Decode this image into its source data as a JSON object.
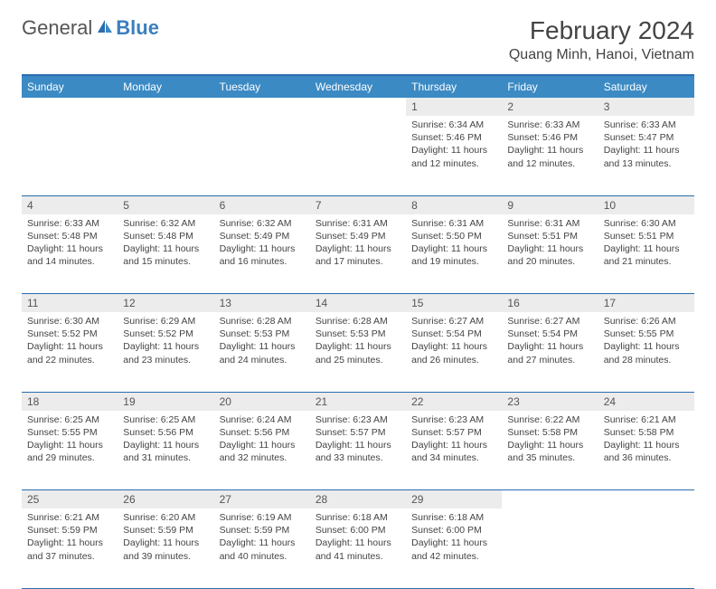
{
  "logo": {
    "general": "General",
    "blue": "Blue"
  },
  "title": "February 2024",
  "location": "Quang Minh, Hanoi, Vietnam",
  "colors": {
    "header_bg": "#3b8ac4",
    "header_text": "#ffffff",
    "rule": "#2a6db0",
    "daynum_bg": "#ececec",
    "logo_blue": "#3b7fbf"
  },
  "weekdays": [
    "Sunday",
    "Monday",
    "Tuesday",
    "Wednesday",
    "Thursday",
    "Friday",
    "Saturday"
  ],
  "weeks": [
    [
      null,
      null,
      null,
      null,
      {
        "n": "1",
        "sr": "6:34 AM",
        "ss": "5:46 PM",
        "dl": "11 hours and 12 minutes."
      },
      {
        "n": "2",
        "sr": "6:33 AM",
        "ss": "5:46 PM",
        "dl": "11 hours and 12 minutes."
      },
      {
        "n": "3",
        "sr": "6:33 AM",
        "ss": "5:47 PM",
        "dl": "11 hours and 13 minutes."
      }
    ],
    [
      {
        "n": "4",
        "sr": "6:33 AM",
        "ss": "5:48 PM",
        "dl": "11 hours and 14 minutes."
      },
      {
        "n": "5",
        "sr": "6:32 AM",
        "ss": "5:48 PM",
        "dl": "11 hours and 15 minutes."
      },
      {
        "n": "6",
        "sr": "6:32 AM",
        "ss": "5:49 PM",
        "dl": "11 hours and 16 minutes."
      },
      {
        "n": "7",
        "sr": "6:31 AM",
        "ss": "5:49 PM",
        "dl": "11 hours and 17 minutes."
      },
      {
        "n": "8",
        "sr": "6:31 AM",
        "ss": "5:50 PM",
        "dl": "11 hours and 19 minutes."
      },
      {
        "n": "9",
        "sr": "6:31 AM",
        "ss": "5:51 PM",
        "dl": "11 hours and 20 minutes."
      },
      {
        "n": "10",
        "sr": "6:30 AM",
        "ss": "5:51 PM",
        "dl": "11 hours and 21 minutes."
      }
    ],
    [
      {
        "n": "11",
        "sr": "6:30 AM",
        "ss": "5:52 PM",
        "dl": "11 hours and 22 minutes."
      },
      {
        "n": "12",
        "sr": "6:29 AM",
        "ss": "5:52 PM",
        "dl": "11 hours and 23 minutes."
      },
      {
        "n": "13",
        "sr": "6:28 AM",
        "ss": "5:53 PM",
        "dl": "11 hours and 24 minutes."
      },
      {
        "n": "14",
        "sr": "6:28 AM",
        "ss": "5:53 PM",
        "dl": "11 hours and 25 minutes."
      },
      {
        "n": "15",
        "sr": "6:27 AM",
        "ss": "5:54 PM",
        "dl": "11 hours and 26 minutes."
      },
      {
        "n": "16",
        "sr": "6:27 AM",
        "ss": "5:54 PM",
        "dl": "11 hours and 27 minutes."
      },
      {
        "n": "17",
        "sr": "6:26 AM",
        "ss": "5:55 PM",
        "dl": "11 hours and 28 minutes."
      }
    ],
    [
      {
        "n": "18",
        "sr": "6:25 AM",
        "ss": "5:55 PM",
        "dl": "11 hours and 29 minutes."
      },
      {
        "n": "19",
        "sr": "6:25 AM",
        "ss": "5:56 PM",
        "dl": "11 hours and 31 minutes."
      },
      {
        "n": "20",
        "sr": "6:24 AM",
        "ss": "5:56 PM",
        "dl": "11 hours and 32 minutes."
      },
      {
        "n": "21",
        "sr": "6:23 AM",
        "ss": "5:57 PM",
        "dl": "11 hours and 33 minutes."
      },
      {
        "n": "22",
        "sr": "6:23 AM",
        "ss": "5:57 PM",
        "dl": "11 hours and 34 minutes."
      },
      {
        "n": "23",
        "sr": "6:22 AM",
        "ss": "5:58 PM",
        "dl": "11 hours and 35 minutes."
      },
      {
        "n": "24",
        "sr": "6:21 AM",
        "ss": "5:58 PM",
        "dl": "11 hours and 36 minutes."
      }
    ],
    [
      {
        "n": "25",
        "sr": "6:21 AM",
        "ss": "5:59 PM",
        "dl": "11 hours and 37 minutes."
      },
      {
        "n": "26",
        "sr": "6:20 AM",
        "ss": "5:59 PM",
        "dl": "11 hours and 39 minutes."
      },
      {
        "n": "27",
        "sr": "6:19 AM",
        "ss": "5:59 PM",
        "dl": "11 hours and 40 minutes."
      },
      {
        "n": "28",
        "sr": "6:18 AM",
        "ss": "6:00 PM",
        "dl": "11 hours and 41 minutes."
      },
      {
        "n": "29",
        "sr": "6:18 AM",
        "ss": "6:00 PM",
        "dl": "11 hours and 42 minutes."
      },
      null,
      null
    ]
  ],
  "labels": {
    "sunrise": "Sunrise:",
    "sunset": "Sunset:",
    "daylight": "Daylight:"
  }
}
